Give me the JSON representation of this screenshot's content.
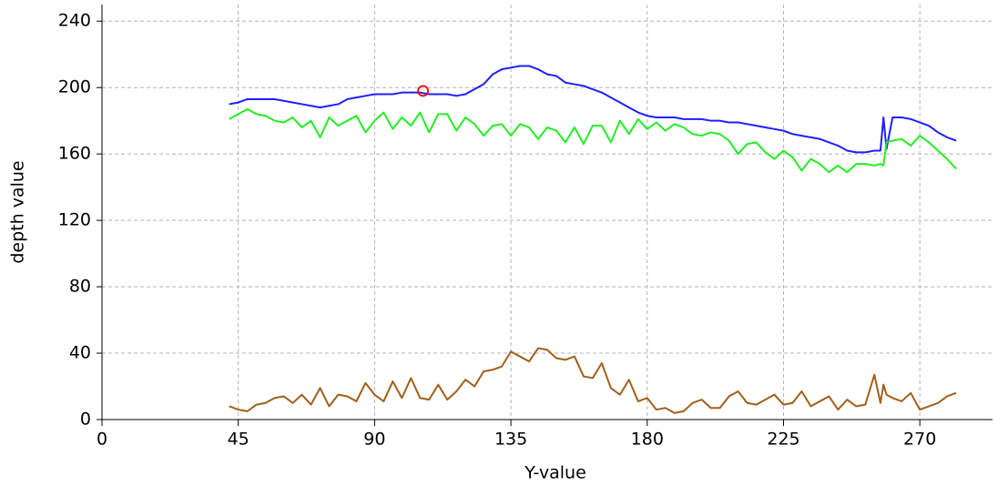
{
  "chart_data": {
    "type": "line",
    "x_label": "Y-value",
    "y_label": "depth value",
    "xlim": [
      0,
      294
    ],
    "ylim": [
      0,
      250
    ],
    "xticks": [
      0,
      45,
      90,
      135,
      180,
      225,
      270
    ],
    "yticks": [
      0,
      40,
      80,
      120,
      160,
      200,
      240
    ],
    "grid": true,
    "x": [
      42,
      45,
      48,
      51,
      54,
      57,
      60,
      63,
      66,
      69,
      72,
      75,
      78,
      81,
      84,
      87,
      90,
      93,
      96,
      99,
      102,
      105,
      108,
      111,
      114,
      117,
      120,
      123,
      126,
      129,
      132,
      135,
      138,
      141,
      144,
      147,
      150,
      153,
      156,
      159,
      162,
      165,
      168,
      171,
      174,
      177,
      180,
      183,
      186,
      189,
      192,
      195,
      198,
      201,
      204,
      207,
      210,
      213,
      216,
      219,
      222,
      225,
      228,
      231,
      234,
      237,
      240,
      243,
      246,
      249,
      252,
      255,
      257,
      258,
      259,
      261,
      264,
      267,
      270,
      273,
      276,
      279,
      282
    ],
    "series": [
      {
        "color": "#1f1fff",
        "values": [
          190,
          191,
          193,
          193,
          193,
          193,
          192,
          191,
          190,
          189,
          188,
          189,
          190,
          193,
          194,
          195,
          196,
          196,
          196,
          197,
          197,
          197,
          196,
          196,
          196,
          195,
          196,
          199,
          202,
          208,
          211,
          212,
          213,
          213,
          211,
          208,
          207,
          203,
          202,
          201,
          199,
          197,
          194,
          191,
          188,
          185,
          183,
          182,
          182,
          182,
          181,
          181,
          181,
          180,
          180,
          179,
          179,
          178,
          177,
          176,
          175,
          174,
          172,
          171,
          170,
          169,
          167,
          165,
          162,
          161,
          161,
          162,
          162,
          182,
          163,
          182,
          182,
          181,
          179,
          177,
          173,
          170,
          168
        ]
      },
      {
        "color": "#22ee22",
        "values": [
          181,
          184,
          187,
          184,
          183,
          180,
          179,
          182,
          176,
          180,
          170,
          182,
          177,
          180,
          183,
          173,
          180,
          185,
          175,
          182,
          177,
          185,
          173,
          184,
          184,
          174,
          182,
          178,
          171,
          177,
          178,
          171,
          178,
          176,
          169,
          176,
          174,
          167,
          176,
          166,
          177,
          177,
          167,
          180,
          172,
          181,
          175,
          179,
          174,
          178,
          176,
          172,
          171,
          173,
          172,
          168,
          160,
          166,
          167,
          161,
          157,
          162,
          158,
          150,
          157,
          154,
          149,
          153,
          149,
          154,
          154,
          153,
          154,
          153,
          167,
          168,
          169,
          165,
          171,
          167,
          162,
          157,
          151
        ]
      },
      {
        "color": "#a0601a",
        "values": [
          8,
          6,
          5,
          9,
          10,
          13,
          14,
          10,
          15,
          9,
          19,
          8,
          15,
          14,
          11,
          22,
          15,
          11,
          23,
          13,
          25,
          13,
          12,
          21,
          12,
          17,
          24,
          20,
          29,
          30,
          32,
          41,
          38,
          35,
          43,
          42,
          37,
          36,
          38,
          26,
          25,
          34,
          19,
          15,
          24,
          11,
          13,
          6,
          7,
          4,
          5,
          10,
          12,
          7,
          7,
          14,
          17,
          10,
          9,
          12,
          15,
          9,
          10,
          17,
          8,
          11,
          14,
          6,
          12,
          8,
          9,
          27,
          10,
          21,
          15,
          13,
          11,
          16,
          6,
          8,
          10,
          14,
          16
        ]
      }
    ],
    "marker": {
      "x": 106,
      "y": 198,
      "color": "#ff0000"
    }
  }
}
